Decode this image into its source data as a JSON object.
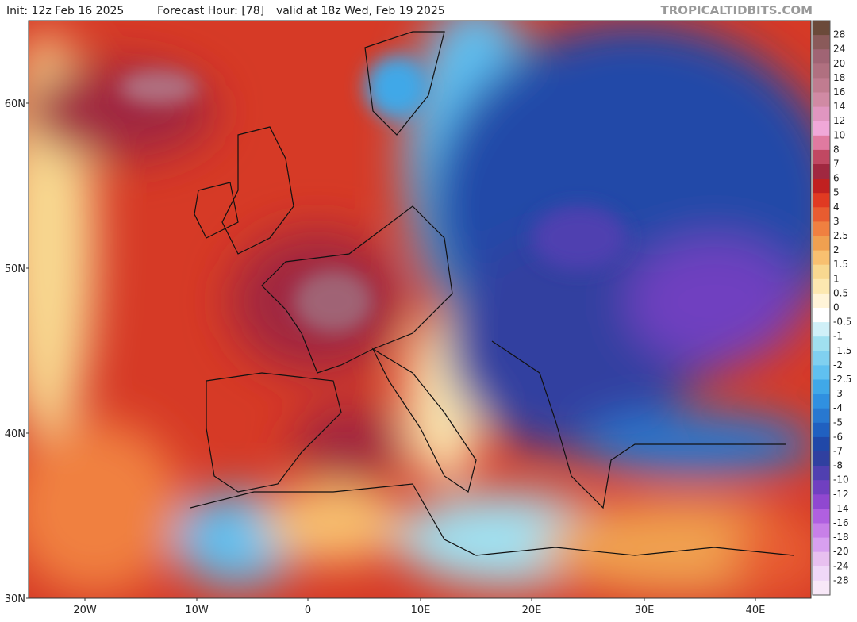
{
  "header": {
    "init": "Init: 12z Feb 16 2025",
    "forecast_hour": "Forecast Hour: [78]",
    "valid": "valid at 18z Wed, Feb 19 2025",
    "site": "TROPICALTIDBITS.COM"
  },
  "lat_labels": [
    "60N",
    "50N",
    "40N",
    "30N"
  ],
  "lon_labels": [
    "20W",
    "10W",
    "0",
    "10E",
    "20E",
    "30E",
    "40E"
  ],
  "colorbar": {
    "levels": [
      28,
      24,
      20,
      18,
      16,
      14,
      12,
      10,
      8,
      7,
      6,
      5,
      4,
      3,
      2.5,
      2,
      1.5,
      1,
      0.5,
      0,
      -0.5,
      -1,
      -1.5,
      -2,
      -2.5,
      -3,
      -4,
      -5,
      -6,
      -7,
      -8,
      -10,
      -12,
      -14,
      -16,
      -18,
      -20,
      -24,
      -28
    ],
    "colors": [
      "#6b4a3a",
      "#8a5a5a",
      "#a06474",
      "#b07080",
      "#c07c90",
      "#d08aa4",
      "#e096c0",
      "#f0a8d8",
      "#e07aa0",
      "#c04862",
      "#a02840",
      "#c02020",
      "#e03a22",
      "#e85c30",
      "#f08040",
      "#f0a050",
      "#f8c070",
      "#f8d890",
      "#fce8b0",
      "#fff4d8",
      "#ffffff",
      "#d0f0f8",
      "#a0e0f0",
      "#80d0f0",
      "#60c0f0",
      "#40a8e8",
      "#3090e0",
      "#2878d0",
      "#2060c0",
      "#2048a8",
      "#3040a0",
      "#5040b0",
      "#7040c0",
      "#9048d0",
      "#b060e0",
      "#c880e8",
      "#d8a0f0",
      "#e8c0f0",
      "#f0d8f8",
      "#f8e8f8"
    ]
  }
}
